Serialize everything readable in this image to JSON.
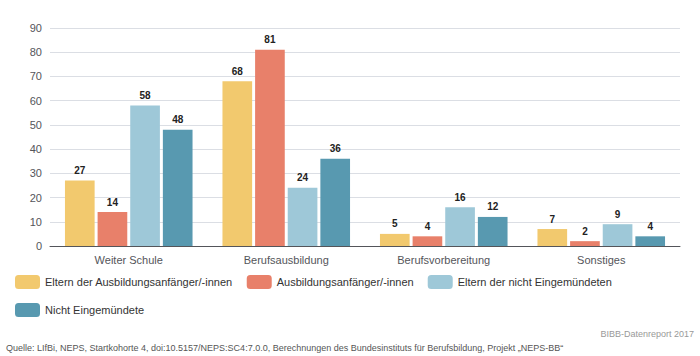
{
  "chart_data": {
    "type": "bar",
    "categories": [
      "Weiter Schule",
      "Berufsausbildung",
      "Berufsvorbereitung",
      "Sonstiges"
    ],
    "series": [
      {
        "name": "Eltern der Ausbildungsanfänger/-innen",
        "color": "#f2c96e",
        "values": [
          27,
          68,
          5,
          7
        ]
      },
      {
        "name": "Ausbildungsanfänger/-innen",
        "color": "#e8806a",
        "values": [
          14,
          81,
          4,
          2
        ]
      },
      {
        "name": "Eltern der nicht Eingemündeten",
        "color": "#9ec8d8",
        "values": [
          58,
          24,
          16,
          9
        ]
      },
      {
        "name": "Nicht Eingemündete",
        "color": "#5899b0",
        "values": [
          48,
          36,
          12,
          4
        ]
      }
    ],
    "ylim": [
      0,
      90
    ],
    "yticks": [
      0,
      10,
      20,
      30,
      40,
      50,
      60,
      70,
      80,
      90
    ],
    "grid": true,
    "data_labels": true,
    "legend": "bottom",
    "annotations": [
      "Quelle: LIfBi, NEPS, Startkohorte 4, doi:10.5157/NEPS:SC4:7.0.0, Berechnungen des Bundesinstituts für Berufsbildung, Projekt „NEPS-BB“",
      "BIBB-Datenreport 2017"
    ]
  }
}
